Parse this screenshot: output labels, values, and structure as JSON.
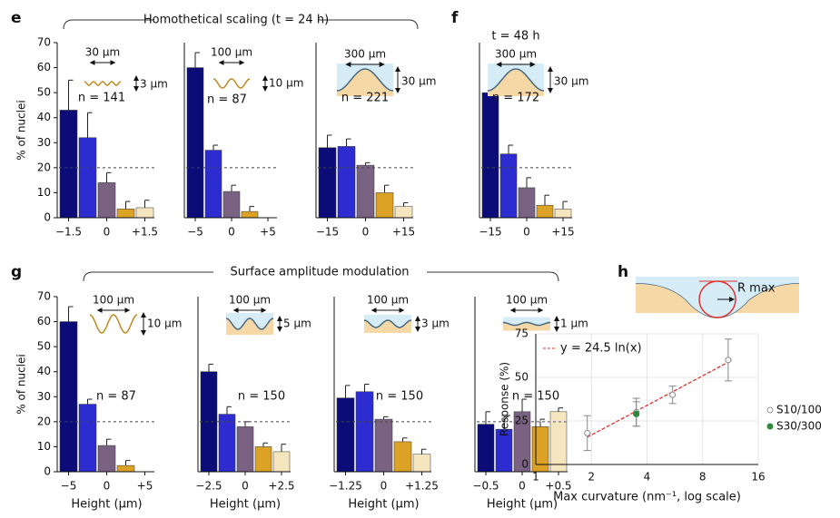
{
  "headers": [
    "Homothetical scaling (t = 24 h)",
    "t = 48 h",
    "Surface amplitude modulation"
  ],
  "chart_data": [
    {
      "type": "bar",
      "panel": "e",
      "ylabel": "% of nuclei",
      "categories": [
        "−1.5",
        null,
        "0",
        null,
        "+1.5"
      ],
      "values": [
        43,
        32,
        14,
        3.5,
        4
      ],
      "errors": [
        12,
        10,
        4,
        3,
        3
      ],
      "colors": [
        "#0c0c78",
        "#2c2cd0",
        "#7a6282",
        "#dca226",
        "#f6e6c0"
      ],
      "ylim": [
        0,
        70
      ],
      "yticks": [
        0,
        10,
        20,
        30,
        40,
        50,
        60,
        70
      ],
      "ref_line": 20,
      "width_label": "30 µm",
      "height_label": "3 µm",
      "n_label": "n = 141"
    },
    {
      "type": "bar",
      "categories": [
        "−5",
        null,
        "0",
        null,
        "+5"
      ],
      "values": [
        60,
        27,
        10.5,
        2.5,
        0
      ],
      "errors": [
        6,
        2,
        2.5,
        2,
        0
      ],
      "colors": [
        "#0c0c78",
        "#2c2cd0",
        "#7a6282",
        "#dca226",
        "#f6e6c0"
      ],
      "ylim": [
        0,
        70
      ],
      "ref_line": 20,
      "width_label": "100 µm",
      "height_label": "10 µm",
      "n_label": "n = 87"
    },
    {
      "type": "bar",
      "categories": [
        "−15",
        null,
        "0",
        null,
        "+15"
      ],
      "values": [
        28,
        28.5,
        21,
        10,
        4.5
      ],
      "errors": [
        5,
        3,
        1,
        3,
        1.5
      ],
      "colors": [
        "#0c0c78",
        "#2c2cd0",
        "#7a6282",
        "#dca226",
        "#f6e6c0"
      ],
      "ylim": [
        0,
        70
      ],
      "ref_line": 20,
      "width_label": "300 µm",
      "height_label": "30 µm",
      "n_label": "n = 221"
    },
    {
      "type": "bar",
      "panel": "f",
      "categories": [
        "−15",
        null,
        "0",
        null,
        "+15"
      ],
      "values": [
        50,
        25.5,
        12,
        5,
        3.5
      ],
      "errors": [
        11,
        3.5,
        4,
        4,
        3
      ],
      "colors": [
        "#0c0c78",
        "#2c2cd0",
        "#7a6282",
        "#dca226",
        "#f6e6c0"
      ],
      "ylim": [
        0,
        70
      ],
      "ref_line": 20,
      "width_label": "300 µm",
      "height_label": "30 µm",
      "n_label": "n = 172"
    },
    {
      "type": "bar",
      "panel": "g",
      "ylabel": "% of nuclei",
      "xlabel": "Height (µm)",
      "categories": [
        "−5",
        null,
        "0",
        null,
        "+5"
      ],
      "values": [
        60,
        27,
        10.5,
        2.5,
        0
      ],
      "errors": [
        6,
        2,
        2.5,
        2,
        0
      ],
      "colors": [
        "#0c0c78",
        "#2c2cd0",
        "#7a6282",
        "#dca226",
        "#f6e6c0"
      ],
      "ylim": [
        0,
        70
      ],
      "yticks": [
        0,
        10,
        20,
        30,
        40,
        50,
        60,
        70
      ],
      "ref_line": 20,
      "width_label": "100 µm",
      "height_label": "10 µm",
      "n_label": "n = 87"
    },
    {
      "type": "bar",
      "xlabel": "Height (µm)",
      "categories": [
        "−2.5",
        null,
        "0",
        null,
        "+2.5"
      ],
      "values": [
        40,
        23,
        18,
        10,
        8
      ],
      "errors": [
        3,
        3,
        2,
        1.5,
        3
      ],
      "colors": [
        "#0c0c78",
        "#2c2cd0",
        "#7a6282",
        "#dca226",
        "#f6e6c0"
      ],
      "ylim": [
        0,
        70
      ],
      "ref_line": 20,
      "width_label": "100 µm",
      "height_label": "5 µm",
      "n_label": "n = 150"
    },
    {
      "type": "bar",
      "xlabel": "Height (µm)",
      "categories": [
        "−1.25",
        null,
        "0",
        null,
        "+1.25"
      ],
      "values": [
        29.5,
        32,
        21,
        12,
        7
      ],
      "errors": [
        5,
        3,
        1,
        1.5,
        2
      ],
      "colors": [
        "#0c0c78",
        "#2c2cd0",
        "#7a6282",
        "#dca226",
        "#f6e6c0"
      ],
      "ylim": [
        0,
        70
      ],
      "ref_line": 20,
      "width_label": "100 µm",
      "height_label": "3 µm",
      "n_label": "n = 150"
    },
    {
      "type": "bar",
      "xlabel": "Height (µm)",
      "categories": [
        "−0.5",
        null,
        "0",
        null,
        "+0.5"
      ],
      "values": [
        19,
        17,
        24,
        18,
        24
      ],
      "errors": [
        5,
        5,
        5,
        3,
        1.5
      ],
      "colors": [
        "#0c0c78",
        "#2c2cd0",
        "#7a6282",
        "#dca226",
        "#f6e6c0"
      ],
      "ylim": [
        0,
        70
      ],
      "ref_line": 20,
      "width_label": "100 µm",
      "height_label": "1 µm",
      "n_label": "n = 150"
    },
    {
      "type": "scatter",
      "panel": "h",
      "inset_label": "R max",
      "xlabel": "Max curvature (nm⁻¹, log scale)",
      "ylabel": "Response (%)",
      "log_x": true,
      "grid": true,
      "legend": "right",
      "xlim": [
        1,
        16
      ],
      "xticks": [
        1,
        2,
        4,
        8,
        16
      ],
      "ylim": [
        0,
        75
      ],
      "yticks": [
        0,
        25,
        50,
        75
      ],
      "series": [
        {
          "name": "S10/100",
          "color": "#999999",
          "x": [
            1.9,
            3.5,
            5.5,
            11
          ],
          "values": [
            18,
            30,
            40,
            60
          ],
          "errors": [
            10,
            8,
            5,
            12
          ]
        },
        {
          "name": "S30/300",
          "color": "#2e8b3e",
          "x": [
            3.5
          ],
          "values": [
            29
          ],
          "errors": [
            7
          ]
        }
      ],
      "fit": {
        "name": "y = 24.5 ln(x)",
        "color": "#e03030",
        "x": [
          1.9,
          11.5
        ],
        "values": [
          15.7,
          59.8
        ]
      }
    }
  ]
}
